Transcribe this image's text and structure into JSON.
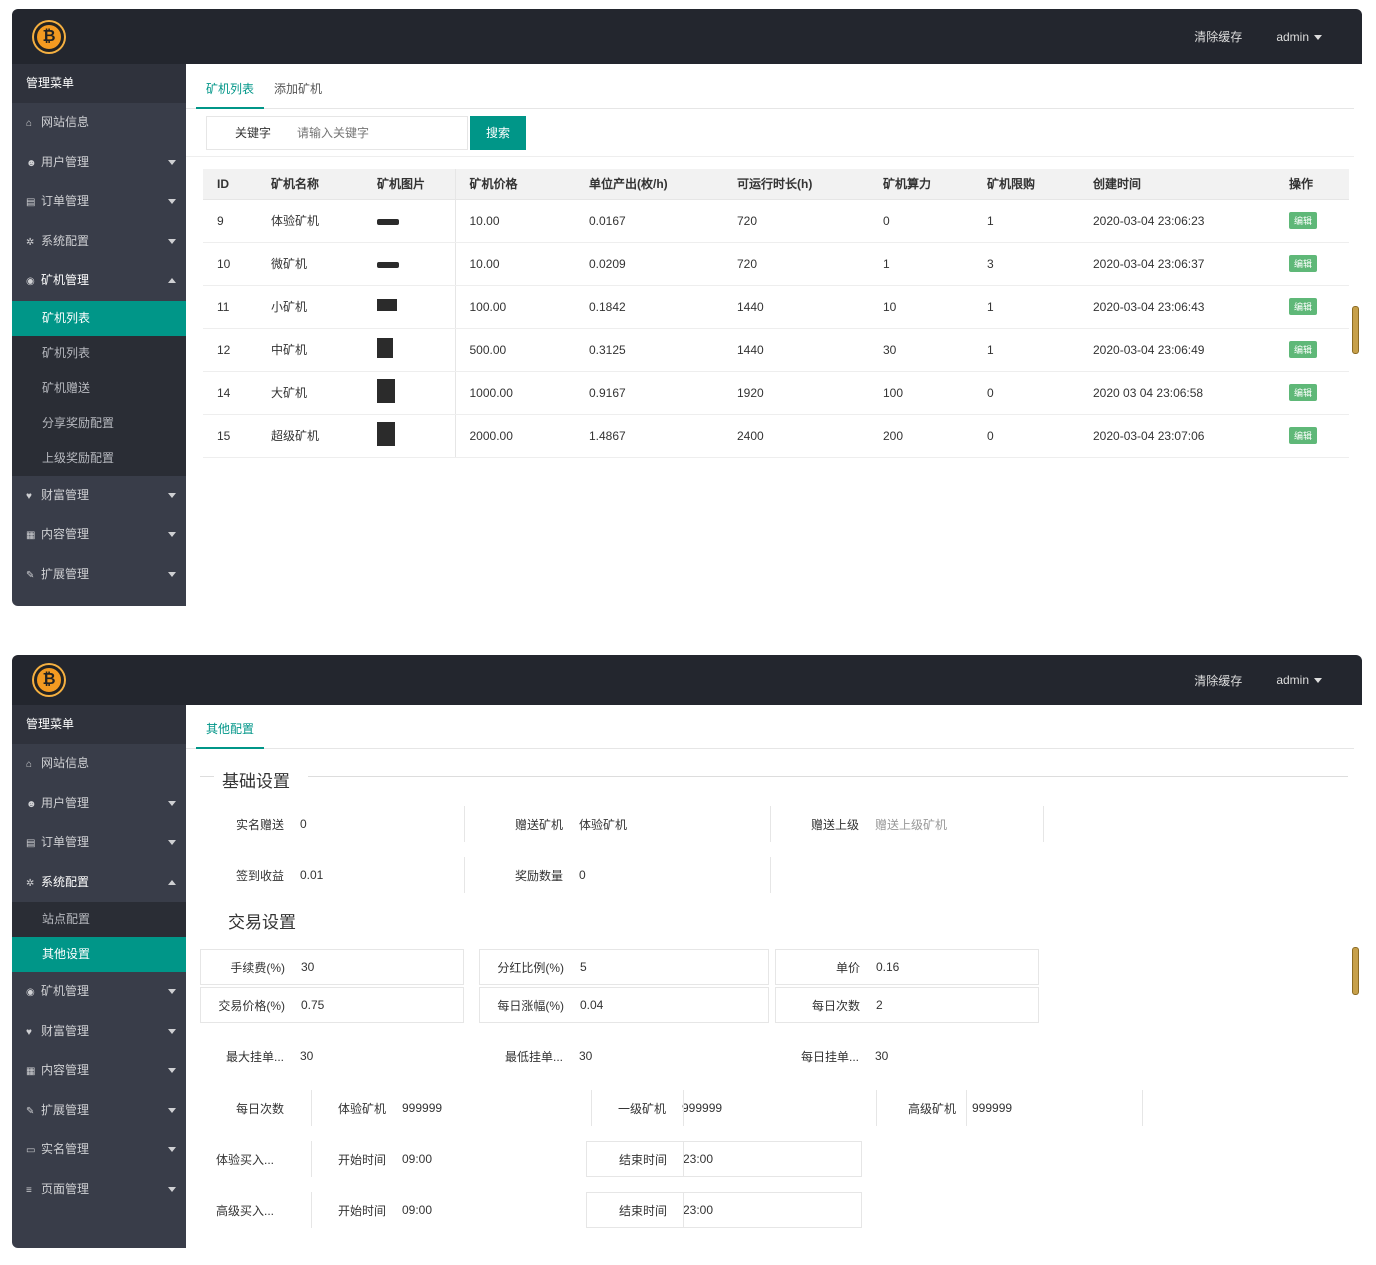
{
  "panel1": {
    "topbar": {
      "link": "清除缓存",
      "user": "admin"
    },
    "sidebar": {
      "head": "管理菜单",
      "items": [
        {
          "icon": "home-icon",
          "glyph": "⌂",
          "label": "网站信息",
          "arrow": ""
        },
        {
          "icon": "users-icon",
          "glyph": "☻",
          "label": "用户管理",
          "arrow": "down"
        },
        {
          "icon": "order-icon",
          "glyph": "▤",
          "label": "订单管理",
          "arrow": "down"
        },
        {
          "icon": "gear-icon",
          "glyph": "✲",
          "label": "系统配置",
          "arrow": "down"
        },
        {
          "icon": "miner-icon",
          "glyph": "◉",
          "label": "矿机管理",
          "arrow": "up"
        }
      ],
      "sub": [
        "矿机列表",
        "矿机列表",
        "矿机赠送",
        "分享奖励配置",
        "上级奖励配置"
      ],
      "items_after": [
        {
          "icon": "heart-icon",
          "glyph": "♥",
          "label": "财富管理",
          "arrow": "down"
        },
        {
          "icon": "doc-icon",
          "glyph": "▦",
          "label": "内容管理",
          "arrow": "down"
        },
        {
          "icon": "wrench-icon",
          "glyph": "✎",
          "label": "扩展管理",
          "arrow": "down"
        }
      ]
    },
    "tabs": [
      "矿机列表",
      "添加矿机"
    ],
    "search": {
      "label": "关键字",
      "placeholder": "请输入关键字",
      "button": "搜索"
    },
    "table": {
      "headers": [
        "ID",
        "矿机名称",
        "矿机图片",
        "矿机价格",
        "单位产出(枚/h)",
        "可运行时长(h)",
        "矿机算力",
        "矿机限购",
        "创建时间",
        "操作"
      ],
      "rows": [
        {
          "id": "9",
          "name": "体验矿机",
          "img": "flat",
          "price": "10.00",
          "out": "0.0167",
          "dur": "720",
          "power": "0",
          "limit": "1",
          "time": "2020-03-04 23:06:23",
          "op": "编辑"
        },
        {
          "id": "10",
          "name": "微矿机",
          "img": "flat",
          "price": "10.00",
          "out": "0.0209",
          "dur": "720",
          "power": "1",
          "limit": "3",
          "time": "2020-03-04 23:06:37",
          "op": "编辑"
        },
        {
          "id": "11",
          "name": "小矿机",
          "img": "box",
          "price": "100.00",
          "out": "0.1842",
          "dur": "1440",
          "power": "10",
          "limit": "1",
          "time": "2020-03-04 23:06:43",
          "op": "编辑"
        },
        {
          "id": "12",
          "name": "中矿机",
          "img": "tower",
          "price": "500.00",
          "out": "0.3125",
          "dur": "1440",
          "power": "30",
          "limit": "1",
          "time": "2020-03-04 23:06:49",
          "op": "编辑"
        },
        {
          "id": "14",
          "name": "大矿机",
          "img": "tall",
          "price": "1000.00",
          "out": "0.9167",
          "dur": "1920",
          "power": "100",
          "limit": "0",
          "time": "2020 03 04 23:06:58",
          "op": "编辑"
        },
        {
          "id": "15",
          "name": "超级矿机",
          "img": "tall",
          "price": "2000.00",
          "out": "1.4867",
          "dur": "2400",
          "power": "200",
          "limit": "0",
          "time": "2020-03-04 23:07:06",
          "op": "编辑"
        }
      ]
    }
  },
  "panel2": {
    "topbar": {
      "link": "清除缓存",
      "user": "admin"
    },
    "sidebar": {
      "head": "管理菜单",
      "items": [
        {
          "icon": "home-icon",
          "glyph": "⌂",
          "label": "网站信息",
          "arrow": ""
        },
        {
          "icon": "users-icon",
          "glyph": "☻",
          "label": "用户管理",
          "arrow": "down"
        },
        {
          "icon": "order-icon",
          "glyph": "▤",
          "label": "订单管理",
          "arrow": "down"
        },
        {
          "icon": "gear-icon",
          "glyph": "✲",
          "label": "系统配置",
          "arrow": "up"
        }
      ],
      "sub": [
        "站点配置",
        "其他设置"
      ],
      "items_after": [
        {
          "icon": "miner-icon",
          "glyph": "◉",
          "label": "矿机管理",
          "arrow": "down"
        },
        {
          "icon": "heart-icon",
          "glyph": "♥",
          "label": "财富管理",
          "arrow": "down"
        },
        {
          "icon": "doc-icon",
          "glyph": "▦",
          "label": "内容管理",
          "arrow": "down"
        },
        {
          "icon": "wrench-icon",
          "glyph": "✎",
          "label": "扩展管理",
          "arrow": "down"
        },
        {
          "icon": "account-icon",
          "glyph": "▭",
          "label": "实名管理",
          "arrow": "down"
        },
        {
          "icon": "list-icon",
          "glyph": "≡",
          "label": "页面管理",
          "arrow": "down"
        }
      ]
    },
    "tabs": [
      "其他配置"
    ],
    "section1": "基础设置",
    "section2": "交易设置",
    "basic": [
      {
        "label": "实名赠送",
        "value": "0"
      },
      {
        "label": "赠送矿机",
        "value": "体验矿机"
      },
      {
        "label": "赠送上级",
        "value": "赠送上级矿机",
        "gray": true
      },
      {
        "label": "签到收益",
        "value": "0.01"
      },
      {
        "label": "奖励数量",
        "value": "0"
      }
    ],
    "trade": [
      {
        "label": "手续费(%)",
        "value": "30"
      },
      {
        "label": "分红比例(%)",
        "value": "5"
      },
      {
        "label": "单价",
        "value": "0.16"
      },
      {
        "label": "交易价格(%)",
        "value": "0.75"
      },
      {
        "label": "每日涨幅(%)",
        "value": "0.04"
      },
      {
        "label": "每日次数",
        "value": "2"
      },
      {
        "label": "最大挂单...",
        "value": "30"
      },
      {
        "label": "最低挂单...",
        "value": "30"
      },
      {
        "label": "每日挂单...",
        "value": "30"
      }
    ],
    "levels": {
      "label": "每日次数",
      "items": [
        {
          "label": "体验矿机",
          "value": "999999"
        },
        {
          "label": "一级矿机",
          "value": "999999"
        },
        {
          "label": "高级矿机",
          "value": "999999"
        }
      ]
    },
    "times": [
      {
        "label": "体验买入...",
        "open_label": "开始时间",
        "open": "09:00",
        "close_label": "结束时间",
        "close": "23:00"
      },
      {
        "label": "高级买入...",
        "open_label": "开始时间",
        "open": "09:00",
        "close_label": "结束时间",
        "close": "23:00"
      }
    ]
  }
}
